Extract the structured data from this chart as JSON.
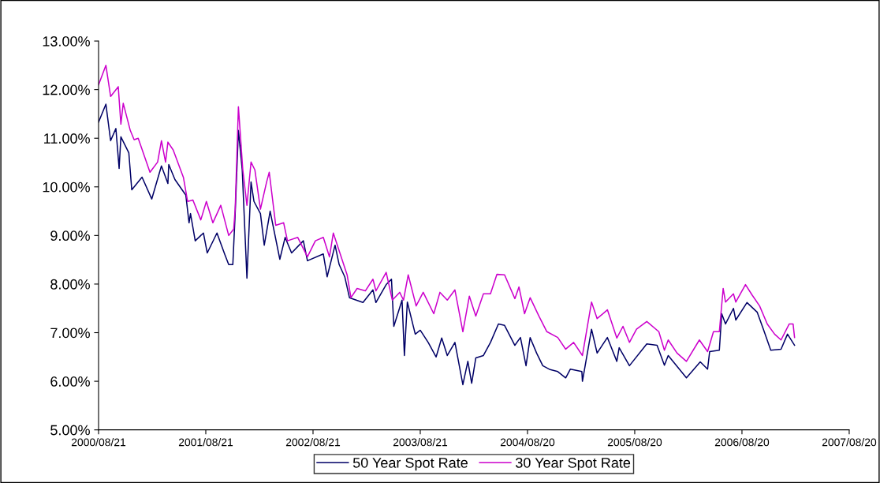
{
  "chart_data": {
    "type": "line",
    "xlim": [
      "2000-08-21",
      "2007-08-20"
    ],
    "xticks": [
      {
        "value": "2000-08-21",
        "label": "2000/08/21"
      },
      {
        "value": "2001-08-21",
        "label": "2001/08/21"
      },
      {
        "value": "2002-08-21",
        "label": "2002/08/21"
      },
      {
        "value": "2003-08-21",
        "label": "2003/08/21"
      },
      {
        "value": "2004-08-20",
        "label": "2004/08/20"
      },
      {
        "value": "2005-08-20",
        "label": "2005/08/20"
      },
      {
        "value": "2006-08-20",
        "label": "2006/08/20"
      },
      {
        "value": "2007-08-20",
        "label": "2007/08/20"
      }
    ],
    "ylim": [
      5,
      13
    ],
    "yticks": [
      {
        "value": 5,
        "label": "5.00%"
      },
      {
        "value": 6,
        "label": "6.00%"
      },
      {
        "value": 7,
        "label": "7.00%"
      },
      {
        "value": 8,
        "label": "8.00%"
      },
      {
        "value": 9,
        "label": "9.00%"
      },
      {
        "value": 10,
        "label": "10.00%"
      },
      {
        "value": 11,
        "label": "11.00%"
      },
      {
        "value": 12,
        "label": "12.00%"
      },
      {
        "value": 13,
        "label": "13.00%"
      }
    ],
    "grid": false,
    "legend": "bottom",
    "marker": "none",
    "line_style": "solid",
    "series": [
      {
        "name": "50 Year Spot Rate",
        "color": "#000066",
        "x": [
          "2000-08-21",
          "2000-09-15",
          "2000-10-01",
          "2000-10-19",
          "2000-10-30",
          "2000-11-05",
          "2000-12-02",
          "2000-12-12",
          "2001-01-16",
          "2001-02-18",
          "2001-03-23",
          "2001-04-14",
          "2001-04-17",
          "2001-05-08",
          "2001-06-14",
          "2001-06-25",
          "2001-06-30",
          "2001-07-16",
          "2001-08-13",
          "2001-08-26",
          "2001-09-28",
          "2001-10-24",
          "2001-11-07",
          "2001-11-21",
          "2001-11-29",
          "2001-12-10",
          "2001-12-23",
          "2002-01-08",
          "2002-01-22",
          "2002-02-01",
          "2002-02-23",
          "2002-03-08",
          "2002-03-28",
          "2002-04-30",
          "2002-05-18",
          "2002-06-09",
          "2002-07-19",
          "2002-08-02",
          "2002-09-25",
          "2002-10-08",
          "2002-11-04",
          "2002-11-18",
          "2002-12-07",
          "2002-12-23",
          "2003-02-07",
          "2003-03-13",
          "2003-03-23",
          "2003-04-27",
          "2003-05-15",
          "2003-05-23",
          "2003-06-20",
          "2003-06-28",
          "2003-07-08",
          "2003-08-04",
          "2003-08-21",
          "2003-09-17",
          "2003-10-14",
          "2003-11-02",
          "2003-11-21",
          "2003-12-17",
          "2004-01-13",
          "2004-01-30",
          "2004-02-12",
          "2004-02-26",
          "2004-03-23",
          "2004-04-16",
          "2004-05-13",
          "2004-06-03",
          "2004-07-08",
          "2004-07-27",
          "2004-08-15",
          "2004-08-29",
          "2004-09-20",
          "2004-10-11",
          "2004-11-05",
          "2004-12-01",
          "2004-12-28",
          "2005-01-13",
          "2005-02-21",
          "2005-02-23",
          "2005-03-26",
          "2005-04-14",
          "2005-05-19",
          "2005-06-20",
          "2005-06-28",
          "2005-08-02",
          "2005-09-30",
          "2005-11-04",
          "2005-11-29",
          "2005-12-12",
          "2006-02-12",
          "2006-03-31",
          "2006-04-25",
          "2006-05-02",
          "2006-06-04",
          "2006-06-12",
          "2006-06-25",
          "2006-07-22",
          "2006-07-30",
          "2006-09-06",
          "2006-10-11",
          "2006-11-01",
          "2006-11-26",
          "2006-12-31",
          "2007-01-22",
          "2007-02-15"
        ],
        "values": [
          11.33,
          11.7,
          10.95,
          11.2,
          10.38,
          11.03,
          10.7,
          9.94,
          10.2,
          9.75,
          10.43,
          10.07,
          10.46,
          10.15,
          9.83,
          9.26,
          9.45,
          8.89,
          9.05,
          8.64,
          9.05,
          8.62,
          8.4,
          8.4,
          9.45,
          11.16,
          10.35,
          8.12,
          10.1,
          9.7,
          9.45,
          8.8,
          9.5,
          8.51,
          8.96,
          8.64,
          8.89,
          8.48,
          8.62,
          8.15,
          8.8,
          8.4,
          8.15,
          7.72,
          7.62,
          7.88,
          7.62,
          7.99,
          8.1,
          7.13,
          7.67,
          6.53,
          7.63,
          6.97,
          7.05,
          6.8,
          6.5,
          6.89,
          6.53,
          6.8,
          5.93,
          6.41,
          5.96,
          6.48,
          6.53,
          6.8,
          7.18,
          7.15,
          6.74,
          6.9,
          6.32,
          6.9,
          6.58,
          6.32,
          6.24,
          6.2,
          6.07,
          6.25,
          6.2,
          6.0,
          7.07,
          6.58,
          6.9,
          6.41,
          6.69,
          6.32,
          6.77,
          6.74,
          6.33,
          6.53,
          6.07,
          6.4,
          6.25,
          6.61,
          6.64,
          7.39,
          7.18,
          7.5,
          7.26,
          7.62,
          7.42,
          7.07,
          6.64,
          6.66,
          6.97,
          6.74
        ]
      },
      {
        "name": "30 Year Spot Rate",
        "color": "#cc00cc",
        "x": [
          "2000-08-21",
          "2000-09-15",
          "2000-10-01",
          "2000-10-27",
          "2000-11-05",
          "2000-11-13",
          "2000-12-07",
          "2000-12-20",
          "2001-01-03",
          "2001-02-12",
          "2001-03-10",
          "2001-03-23",
          "2001-04-06",
          "2001-04-14",
          "2001-05-02",
          "2001-06-06",
          "2001-06-20",
          "2001-07-08",
          "2001-08-04",
          "2001-08-23",
          "2001-09-14",
          "2001-10-11",
          "2001-11-07",
          "2001-11-24",
          "2001-11-29",
          "2001-12-10",
          "2001-12-25",
          "2002-01-08",
          "2002-01-22",
          "2002-02-04",
          "2002-02-23",
          "2002-03-16",
          "2002-03-25",
          "2002-04-16",
          "2002-05-13",
          "2002-05-26",
          "2002-06-30",
          "2002-08-02",
          "2002-08-29",
          "2002-09-25",
          "2002-10-16",
          "2002-10-29",
          "2002-12-15",
          "2002-12-28",
          "2003-01-18",
          "2003-02-15",
          "2003-03-13",
          "2003-03-23",
          "2003-04-27",
          "2003-05-18",
          "2003-06-12",
          "2003-06-25",
          "2003-07-11",
          "2003-08-07",
          "2003-08-31",
          "2003-10-06",
          "2003-10-27",
          "2003-11-21",
          "2003-12-17",
          "2004-01-13",
          "2004-02-04",
          "2004-02-26",
          "2004-03-23",
          "2004-04-16",
          "2004-05-08",
          "2004-06-03",
          "2004-07-08",
          "2004-07-22",
          "2004-08-10",
          "2004-08-29",
          "2004-09-28",
          "2004-10-25",
          "2004-12-01",
          "2004-12-28",
          "2005-01-24",
          "2005-02-23",
          "2005-03-26",
          "2005-04-14",
          "2005-05-19",
          "2005-06-20",
          "2005-07-11",
          "2005-08-02",
          "2005-08-26",
          "2005-09-30",
          "2005-11-10",
          "2005-11-29",
          "2005-12-12",
          "2006-01-11",
          "2006-02-12",
          "2006-03-28",
          "2006-04-25",
          "2006-05-15",
          "2006-06-04",
          "2006-06-17",
          "2006-06-25",
          "2006-07-22",
          "2006-07-30",
          "2006-09-01",
          "2006-09-23",
          "2006-10-19",
          "2006-11-14",
          "2006-12-09",
          "2006-12-31",
          "2007-01-28",
          "2007-02-10",
          "2007-02-15"
        ],
        "values": [
          12.1,
          12.5,
          11.86,
          12.06,
          11.29,
          11.72,
          11.16,
          10.97,
          11.0,
          10.3,
          10.51,
          10.95,
          10.51,
          10.92,
          10.76,
          10.19,
          9.7,
          9.73,
          9.32,
          9.7,
          9.26,
          9.62,
          9.0,
          9.13,
          9.54,
          11.65,
          10.35,
          9.62,
          10.51,
          10.35,
          9.54,
          10.1,
          10.3,
          9.21,
          9.26,
          8.89,
          8.96,
          8.56,
          8.89,
          8.96,
          8.56,
          9.05,
          8.19,
          7.72,
          7.91,
          7.86,
          8.1,
          7.86,
          8.24,
          7.67,
          7.83,
          7.67,
          8.19,
          7.55,
          7.83,
          7.39,
          7.83,
          7.67,
          7.88,
          7.02,
          7.75,
          7.34,
          7.8,
          7.8,
          8.2,
          8.19,
          7.7,
          7.94,
          7.39,
          7.72,
          7.34,
          7.02,
          6.9,
          6.66,
          6.8,
          6.53,
          7.63,
          7.29,
          7.47,
          6.89,
          7.13,
          6.8,
          7.07,
          7.23,
          7.02,
          6.64,
          6.85,
          6.58,
          6.41,
          6.85,
          6.61,
          7.02,
          7.02,
          7.91,
          7.63,
          7.8,
          7.63,
          7.99,
          7.78,
          7.55,
          7.18,
          6.97,
          6.85,
          7.18,
          7.18,
          6.9
        ]
      }
    ]
  }
}
